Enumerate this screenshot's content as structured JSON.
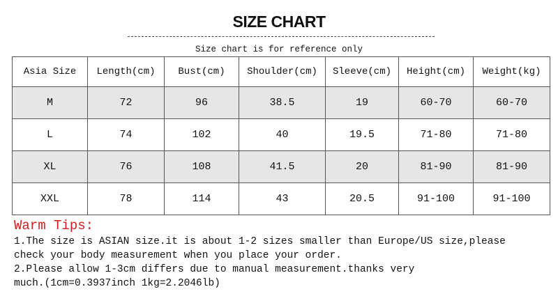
{
  "title": "SIZE CHART",
  "subtitle": "Size chart is for reference only",
  "table": {
    "headers": [
      "Asia Size",
      "Length(cm)",
      "Bust(cm)",
      "Shoulder(cm)",
      "Sleeve(cm)",
      "Height(cm)",
      "Weight(kg)"
    ],
    "rows": [
      [
        "M",
        "72",
        "96",
        "38.5",
        "19",
        "60-70",
        "60-70"
      ],
      [
        "L",
        "74",
        "102",
        "40",
        "19.5",
        "71-80",
        "71-80"
      ],
      [
        "XL",
        "76",
        "108",
        "41.5",
        "20",
        "81-90",
        "81-90"
      ],
      [
        "XXL",
        "78",
        "114",
        "43",
        "20.5",
        "91-100",
        "91-100"
      ]
    ]
  },
  "tips": {
    "heading": "Warm Tips:",
    "lines": [
      "1.The size is ASIAN size.it is about 1-2 sizes smaller than Europe/US size,please",
      "check your body measurement when you place your order.",
      "2.Please allow 1-3cm differs due to manual measurement.thanks very",
      "much.(1cm=0.3937inch 1kg=2.2046lb)"
    ]
  },
  "colors": {
    "tips_heading": "#d61b1b",
    "row_shade": "#e6e6e6"
  }
}
